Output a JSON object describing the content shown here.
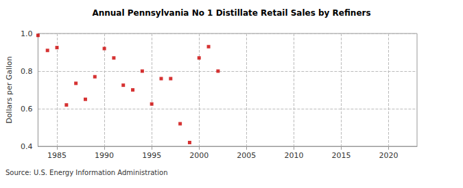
{
  "chart_data": {
    "type": "scatter",
    "title": "Annual Pennsylvania No 1 Distillate Retail Sales by Refiners",
    "y_label": "Dollars per Gallon",
    "source": "Source: U.S. Energy Information Administration",
    "x": [
      1983,
      1984,
      1985,
      1986,
      1987,
      1988,
      1989,
      1990,
      1991,
      1992,
      1993,
      1994,
      1995,
      1996,
      1997,
      1998,
      1999,
      2000,
      2001,
      2002
    ],
    "values": [
      0.99,
      0.91,
      0.925,
      0.62,
      0.735,
      0.65,
      0.77,
      0.92,
      0.87,
      0.725,
      0.7,
      0.8,
      0.625,
      0.76,
      0.76,
      0.52,
      0.42,
      0.87,
      0.93,
      0.8
    ],
    "color": "#cc0000",
    "marker": "square",
    "xlim": [
      1983,
      2023
    ],
    "xticks": [
      1985,
      1990,
      1995,
      2000,
      2005,
      2010,
      2015,
      2020
    ],
    "ylim": [
      0.4,
      1.0
    ],
    "yticks": [
      0.4,
      0.6,
      0.8,
      {
        "value": 1.0,
        "label": "1.0"
      }
    ],
    "grid": true
  }
}
